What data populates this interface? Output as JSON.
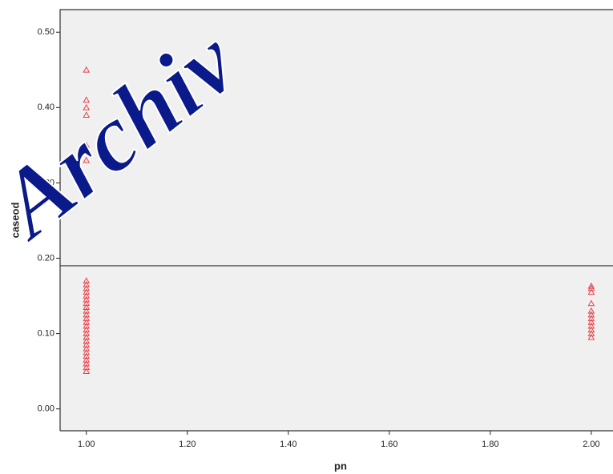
{
  "chart_data": {
    "type": "scatter",
    "x_label": "pn",
    "y_label": "caseod",
    "watermark": "Archiv",
    "x": [
      1,
      1,
      1,
      1,
      1,
      1,
      1,
      1,
      1,
      1,
      1,
      1,
      1,
      1,
      1,
      1,
      1,
      1,
      1,
      1,
      1,
      1,
      1,
      1,
      1,
      1,
      1,
      1,
      1,
      1,
      1,
      1,
      2,
      2,
      2,
      2,
      2,
      2,
      2,
      2,
      2,
      2,
      2,
      2
    ],
    "values": [
      0.45,
      0.41,
      0.4,
      0.39,
      0.35,
      0.33,
      0.3,
      0.05,
      0.055,
      0.06,
      0.065,
      0.07,
      0.075,
      0.08,
      0.085,
      0.09,
      0.095,
      0.1,
      0.105,
      0.11,
      0.115,
      0.12,
      0.125,
      0.13,
      0.135,
      0.14,
      0.145,
      0.15,
      0.155,
      0.16,
      0.165,
      0.17,
      0.095,
      0.1,
      0.105,
      0.11,
      0.115,
      0.12,
      0.125,
      0.13,
      0.14,
      0.155,
      0.16,
      0.163
    ],
    "color": "#e8424a",
    "reference_line": 0.19,
    "xlim": [
      0.948,
      2.043
    ],
    "ylim": [
      -0.029,
      0.53
    ],
    "xticks": [
      {
        "value": 1,
        "label": "1.00"
      },
      {
        "value": 1.2,
        "label": "1.20"
      },
      {
        "value": 1.4,
        "label": "1.40"
      },
      {
        "value": 1.6,
        "label": "1.60"
      },
      {
        "value": 1.8,
        "label": "1.80"
      },
      {
        "value": 2,
        "label": "2.00"
      }
    ],
    "yticks": [
      {
        "value": 0,
        "label": "0.00"
      },
      {
        "value": 0.1,
        "label": "0.10"
      },
      {
        "value": 0.2,
        "label": "0.20"
      },
      {
        "value": 0.3,
        "label": "0.30"
      },
      {
        "value": 0.4,
        "label": "0.40"
      },
      {
        "value": 0.5,
        "label": "0.50"
      }
    ]
  }
}
